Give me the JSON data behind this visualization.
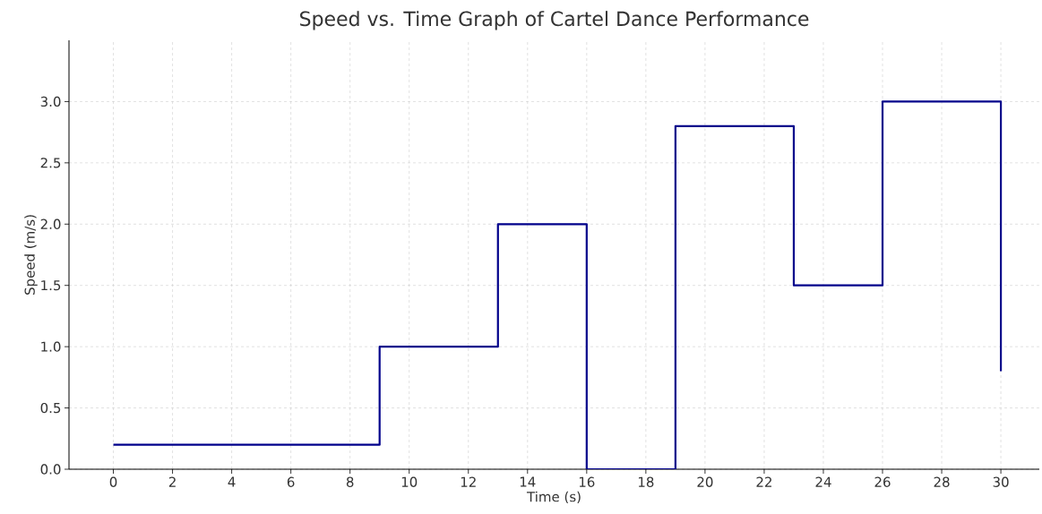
{
  "chart_data": {
    "type": "step",
    "title": "Speed vs. Time Graph of Cartel Dance Performance",
    "xlabel": "Time (s)",
    "ylabel": "Speed (m/s)",
    "x": [
      0,
      9,
      13,
      16,
      19,
      23,
      26,
      30
    ],
    "values": [
      0.2,
      1.0,
      2.0,
      0.0,
      2.8,
      1.5,
      3.0,
      0.8
    ],
    "color": "#00008b",
    "xlim": [
      -1.5,
      31.3
    ],
    "ylim": [
      0,
      3.5
    ],
    "xticks": [
      0,
      2,
      4,
      6,
      8,
      10,
      12,
      14,
      16,
      18,
      20,
      22,
      24,
      26,
      28,
      30
    ],
    "yticks": [
      {
        "value": 0,
        "label": "0.0"
      },
      {
        "value": 0.5,
        "label": "0.5"
      },
      {
        "value": 1,
        "label": "1.0"
      },
      {
        "value": 1.5,
        "label": "1.5"
      },
      {
        "value": 2,
        "label": "2.0"
      },
      {
        "value": 2.5,
        "label": "2.5"
      },
      {
        "value": 3,
        "label": "3.0"
      }
    ],
    "grid": true
  }
}
